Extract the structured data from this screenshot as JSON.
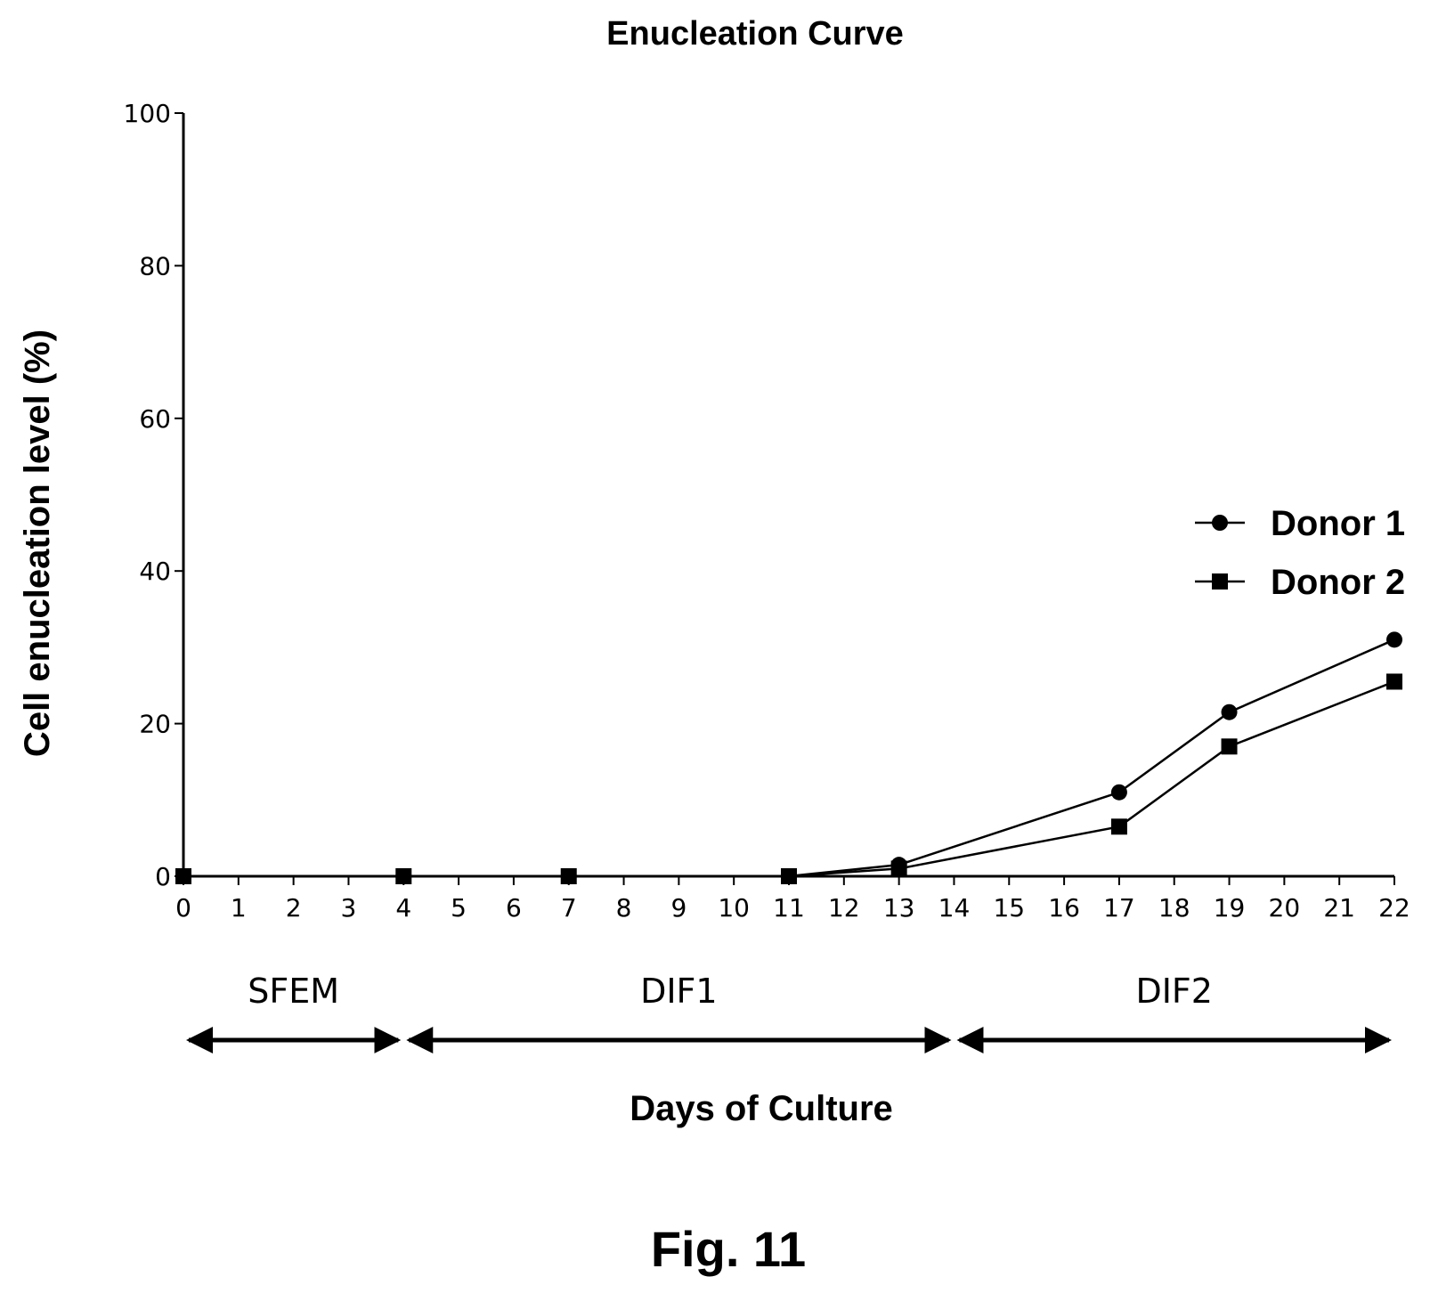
{
  "chart_data": {
    "type": "line",
    "title": "Enucleation Curve",
    "xlabel": "Days of Culture",
    "ylabel": "Cell enucleation level (%)",
    "xlim": [
      0,
      22
    ],
    "ylim": [
      0,
      100
    ],
    "x_ticks": [
      "0",
      "1",
      "2",
      "3",
      "4",
      "5",
      "6",
      "7",
      "8",
      "9",
      "10",
      "11",
      "12",
      "13",
      "14",
      "15",
      "16",
      "17",
      "18",
      "19",
      "20",
      "21",
      "22"
    ],
    "y_ticks": [
      "0",
      "20",
      "40",
      "60",
      "80",
      "100"
    ],
    "grid": false,
    "legend_position": "right",
    "series": [
      {
        "name": "Donor 1",
        "marker": "circle",
        "color": "#000000",
        "x": [
          0,
          4,
          7,
          11,
          13,
          17,
          19,
          22
        ],
        "values": [
          0,
          0,
          0,
          0,
          1.5,
          11,
          21.5,
          31
        ]
      },
      {
        "name": "Donor 2",
        "marker": "square",
        "color": "#000000",
        "x": [
          0,
          4,
          7,
          11,
          13,
          17,
          19,
          22
        ],
        "values": [
          0,
          0,
          0,
          0,
          1,
          6.5,
          17,
          25.5
        ]
      }
    ],
    "phases": [
      {
        "label": "SFEM",
        "start": 0,
        "end": 4
      },
      {
        "label": "DIF1",
        "start": 4,
        "end": 14
      },
      {
        "label": "DIF2",
        "start": 14,
        "end": 22
      }
    ]
  },
  "caption": "Fig. 11"
}
